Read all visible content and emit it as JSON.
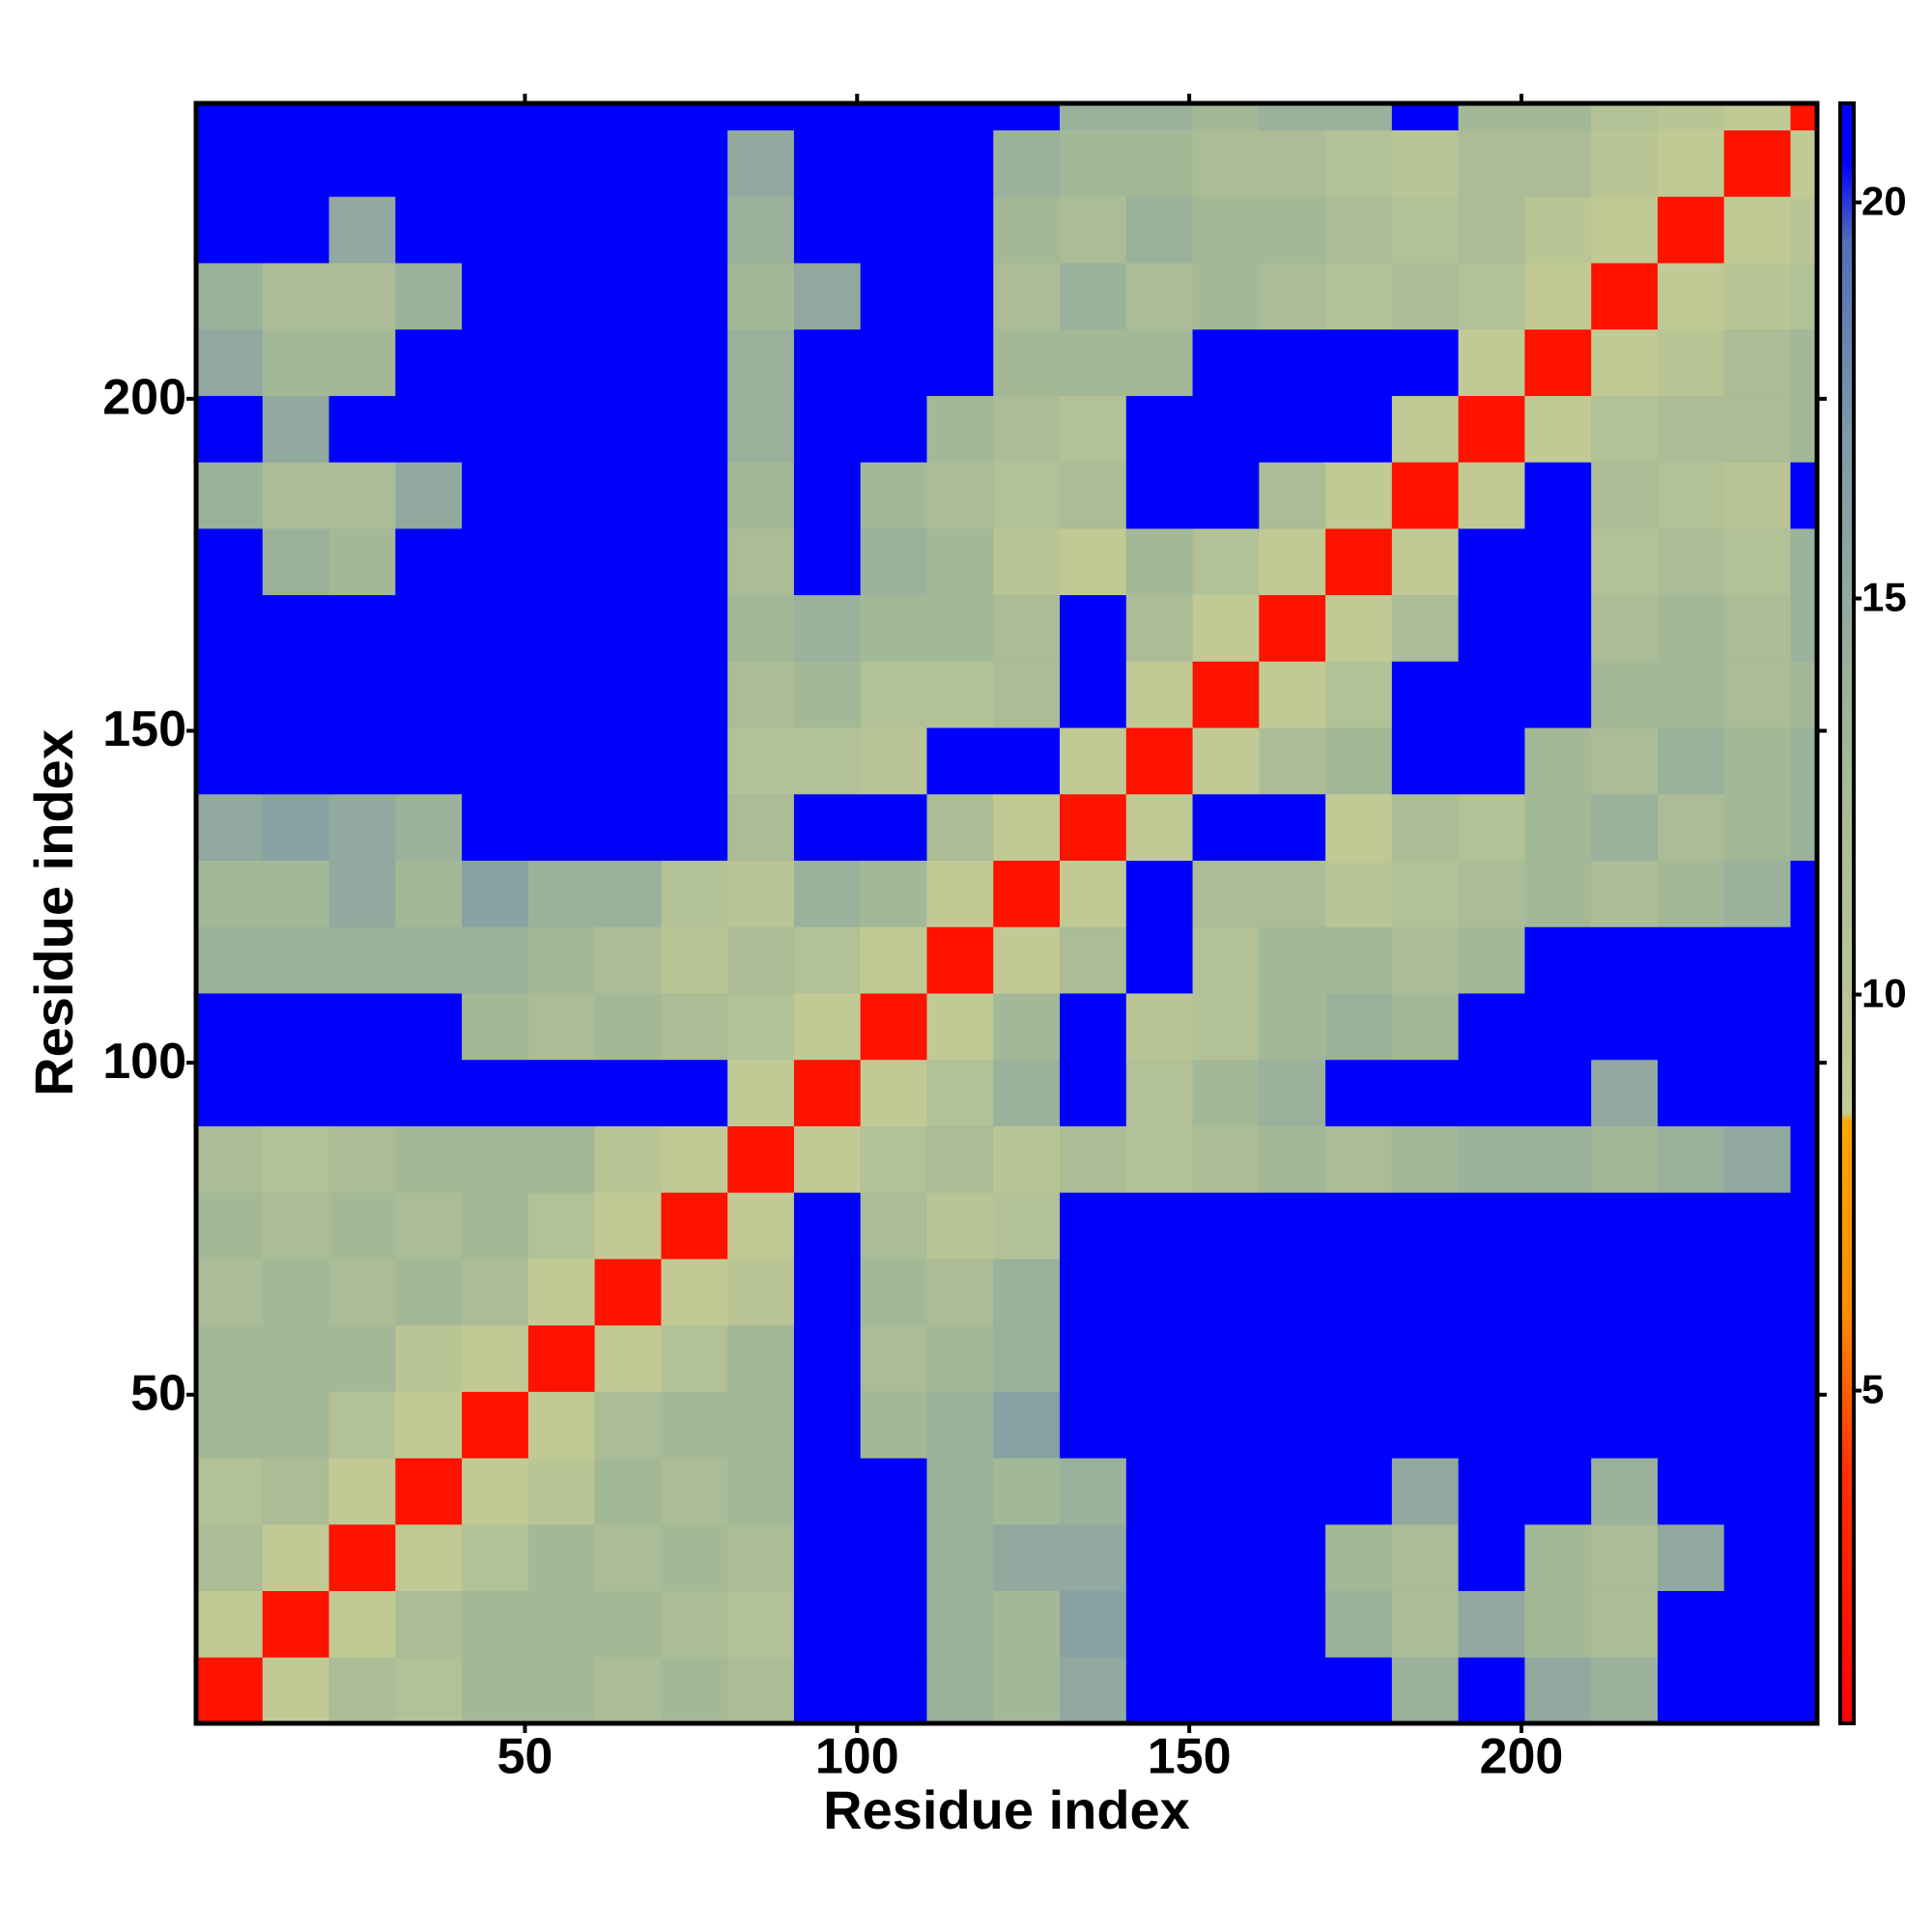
{
  "chart_data": {
    "type": "heatmap",
    "xlabel": "Residue index",
    "ylabel": "Residue index",
    "bins": [
      0.5,
      10.5,
      20.5,
      30.5,
      40.5,
      50.5,
      60.5,
      70.5,
      80.5,
      90.5,
      100.5,
      110.5,
      120.5,
      130.5,
      140.5,
      150.5,
      160.5,
      170.5,
      180.5,
      190.5,
      200.5,
      210.5,
      220.5,
      230.5,
      240.5,
      244.5
    ],
    "values": [
      [
        2,
        9,
        12,
        11,
        13,
        13,
        12,
        13,
        12,
        21,
        21,
        14,
        13,
        15,
        21,
        21,
        21,
        21,
        14,
        21,
        15,
        14,
        21,
        21,
        21
      ],
      [
        9,
        2,
        9,
        12,
        13,
        13,
        13,
        12,
        11,
        21,
        21,
        14,
        13,
        16,
        21,
        21,
        21,
        14,
        12,
        15,
        13,
        12,
        21,
        21,
        21
      ],
      [
        12,
        9,
        2,
        9,
        11,
        13,
        12,
        13,
        12,
        21,
        21,
        14,
        15,
        15,
        21,
        21,
        21,
        13,
        12,
        21,
        13,
        12,
        15,
        21,
        21
      ],
      [
        11,
        12,
        9,
        2,
        9,
        10,
        13,
        12,
        13,
        21,
        21,
        14,
        13,
        14,
        21,
        21,
        21,
        21,
        15,
        21,
        21,
        14,
        21,
        21,
        21
      ],
      [
        13,
        13,
        11,
        9,
        2,
        9,
        12,
        13,
        13,
        21,
        13,
        14,
        16,
        21,
        21,
        21,
        21,
        21,
        21,
        21,
        21,
        21,
        21,
        21,
        21
      ],
      [
        13,
        13,
        13,
        10,
        9,
        2,
        9,
        11,
        13,
        21,
        12,
        13,
        14,
        21,
        21,
        21,
        21,
        21,
        21,
        21,
        21,
        21,
        21,
        21,
        21
      ],
      [
        12,
        13,
        12,
        13,
        12,
        9,
        2,
        9,
        10,
        21,
        13,
        12,
        14,
        21,
        21,
        21,
        21,
        21,
        21,
        21,
        21,
        21,
        21,
        21,
        21
      ],
      [
        13,
        12,
        13,
        12,
        13,
        11,
        9,
        2,
        9,
        21,
        12,
        10,
        11,
        21,
        21,
        21,
        21,
        21,
        21,
        21,
        21,
        21,
        21,
        21,
        21
      ],
      [
        12,
        11,
        12,
        13,
        13,
        13,
        10,
        9,
        2,
        9,
        11,
        12,
        10,
        12,
        11,
        12,
        13,
        12,
        13,
        14,
        14,
        13,
        14,
        15,
        21
      ],
      [
        21,
        21,
        21,
        21,
        21,
        21,
        21,
        21,
        9,
        2,
        9,
        11,
        14,
        21,
        11,
        13,
        14,
        21,
        21,
        21,
        21,
        15,
        21,
        21,
        21
      ],
      [
        21,
        21,
        21,
        21,
        13,
        12,
        13,
        12,
        11,
        9,
        2,
        9,
        13,
        21,
        10,
        11,
        13,
        14,
        13,
        21,
        21,
        21,
        21,
        21,
        21
      ],
      [
        14,
        14,
        14,
        14,
        14,
        13,
        12,
        10,
        12,
        11,
        9,
        2,
        9,
        12,
        21,
        11,
        13,
        13,
        12,
        13,
        21,
        21,
        21,
        21,
        21
      ],
      [
        13,
        13,
        15,
        13,
        16,
        14,
        14,
        11,
        10,
        14,
        13,
        9,
        2,
        9,
        21,
        12,
        12,
        10,
        11,
        12,
        13,
        12,
        13,
        14,
        21
      ],
      [
        15,
        16,
        15,
        14,
        21,
        21,
        21,
        21,
        12,
        21,
        21,
        12,
        9,
        2,
        9,
        21,
        21,
        9,
        12,
        11,
        13,
        14,
        12,
        13,
        14
      ],
      [
        21,
        21,
        21,
        21,
        21,
        21,
        21,
        21,
        11,
        11,
        10,
        21,
        21,
        9,
        2,
        9,
        12,
        13,
        21,
        21,
        13,
        12,
        14,
        13,
        14
      ],
      [
        21,
        21,
        21,
        21,
        21,
        21,
        21,
        21,
        12,
        13,
        11,
        11,
        12,
        21,
        9,
        2,
        9,
        11,
        21,
        21,
        21,
        13,
        13,
        12,
        13
      ],
      [
        21,
        21,
        21,
        21,
        21,
        21,
        21,
        21,
        13,
        14,
        13,
        13,
        12,
        21,
        12,
        9,
        2,
        9,
        12,
        21,
        21,
        12,
        13,
        12,
        14
      ],
      [
        21,
        14,
        13,
        21,
        21,
        21,
        21,
        21,
        12,
        21,
        14,
        13,
        10,
        9,
        13,
        11,
        9,
        2,
        9,
        21,
        21,
        11,
        12,
        11,
        14
      ],
      [
        14,
        12,
        12,
        15,
        21,
        21,
        21,
        21,
        13,
        21,
        13,
        12,
        11,
        12,
        21,
        21,
        12,
        9,
        2,
        9,
        21,
        12,
        11,
        10,
        21
      ],
      [
        21,
        15,
        21,
        21,
        21,
        21,
        21,
        21,
        14,
        21,
        21,
        13,
        12,
        11,
        21,
        21,
        21,
        21,
        9,
        2,
        9,
        11,
        12,
        12,
        13
      ],
      [
        15,
        13,
        13,
        21,
        21,
        21,
        21,
        21,
        14,
        21,
        21,
        21,
        13,
        13,
        13,
        21,
        21,
        21,
        21,
        9,
        2,
        9,
        10,
        12,
        13
      ],
      [
        14,
        12,
        12,
        14,
        21,
        21,
        21,
        21,
        13,
        15,
        21,
        21,
        12,
        14,
        12,
        13,
        12,
        11,
        12,
        11,
        9,
        2,
        9,
        10,
        11
      ],
      [
        21,
        21,
        15,
        21,
        21,
        21,
        21,
        21,
        14,
        21,
        21,
        21,
        13,
        12,
        14,
        13,
        13,
        12,
        11,
        12,
        10,
        9,
        2,
        9,
        10
      ],
      [
        21,
        21,
        21,
        21,
        21,
        21,
        21,
        21,
        15,
        21,
        21,
        21,
        14,
        13,
        13,
        12,
        12,
        11,
        10,
        12,
        12,
        10,
        9,
        2,
        9
      ],
      [
        21,
        21,
        21,
        21,
        21,
        21,
        21,
        21,
        21,
        21,
        21,
        21,
        21,
        14,
        14,
        13,
        14,
        14,
        21,
        13,
        13,
        11,
        10,
        9,
        2
      ]
    ],
    "xlim": [
      0.5,
      244.5
    ],
    "ylim": [
      0.5,
      244.5
    ],
    "xticks": [
      50,
      100,
      150,
      200
    ],
    "yticks": [
      50,
      100,
      150,
      200
    ],
    "colorbar": {
      "lim": [
        0.8,
        21.25
      ],
      "ticks": [
        5,
        10,
        15,
        20
      ]
    },
    "colorscale": [
      [
        0.8,
        "#ff0000"
      ],
      [
        4,
        "#ff3000"
      ],
      [
        6,
        "#ff8c00"
      ],
      [
        8.4,
        "#ffa500"
      ],
      [
        8.5,
        "#c5cc95"
      ],
      [
        13,
        "#a3b896"
      ],
      [
        17,
        "#7f9aa8"
      ],
      [
        19.5,
        "#5070b8"
      ],
      [
        20.5,
        "#0000ff"
      ],
      [
        21.25,
        "#0000ff"
      ]
    ]
  }
}
